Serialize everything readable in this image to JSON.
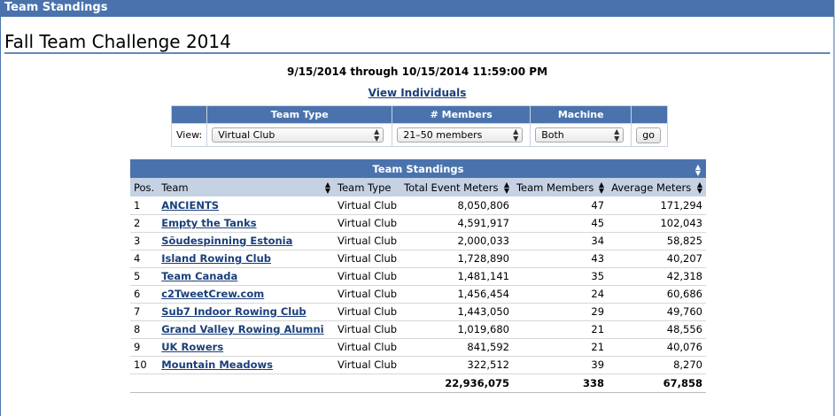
{
  "header": {
    "title": "Team Standings"
  },
  "page": {
    "title": "Fall Team Challenge 2014",
    "date_range": "9/15/2014 through 10/15/2014 11:59:00 PM",
    "view_individuals": "View Individuals"
  },
  "filters": {
    "headers": {
      "team_type": "Team Type",
      "members": "# Members",
      "machine": "Machine"
    },
    "view_label": "View:",
    "team_type_value": "Virtual Club",
    "members_value": "21–50 members",
    "machine_value": "Both",
    "go_label": "go"
  },
  "standings": {
    "caption": "Team Standings",
    "columns": [
      "Pos.",
      "Team",
      "Team Type",
      "Total Event Meters",
      "Team Members",
      "Average Meters"
    ],
    "rows": [
      {
        "pos": "1",
        "team": "ANCIENTS",
        "type": "Virtual Club",
        "meters": "8,050,806",
        "members": "47",
        "avg": "171,294"
      },
      {
        "pos": "2",
        "team": "Empty the Tanks",
        "type": "Virtual Club",
        "meters": "4,591,917",
        "members": "45",
        "avg": "102,043"
      },
      {
        "pos": "3",
        "team": "Sõudespinning Estonia",
        "type": "Virtual Club",
        "meters": "2,000,033",
        "members": "34",
        "avg": "58,825"
      },
      {
        "pos": "4",
        "team": "Island Rowing Club",
        "type": "Virtual Club",
        "meters": "1,728,890",
        "members": "43",
        "avg": "40,207"
      },
      {
        "pos": "5",
        "team": "Team Canada",
        "type": "Virtual Club",
        "meters": "1,481,141",
        "members": "35",
        "avg": "42,318"
      },
      {
        "pos": "6",
        "team": "c2TweetCrew.com",
        "type": "Virtual Club",
        "meters": "1,456,454",
        "members": "24",
        "avg": "60,686"
      },
      {
        "pos": "7",
        "team": "Sub7 Indoor Rowing Club",
        "type": "Virtual Club",
        "meters": "1,443,050",
        "members": "29",
        "avg": "49,760"
      },
      {
        "pos": "8",
        "team": "Grand Valley Rowing Alumni",
        "type": "Virtual Club",
        "meters": "1,019,680",
        "members": "21",
        "avg": "48,556"
      },
      {
        "pos": "9",
        "team": "UK Rowers",
        "type": "Virtual Club",
        "meters": "841,592",
        "members": "21",
        "avg": "40,076"
      },
      {
        "pos": "10",
        "team": "Mountain Meadows",
        "type": "Virtual Club",
        "meters": "322,512",
        "members": "39",
        "avg": "8,270"
      }
    ],
    "totals": {
      "meters": "22,936,075",
      "members": "338",
      "avg": "67,858"
    }
  },
  "colors": {
    "accent": "#4a73ad",
    "subheader": "#c5d2e4",
    "link": "#1a3f7a"
  }
}
